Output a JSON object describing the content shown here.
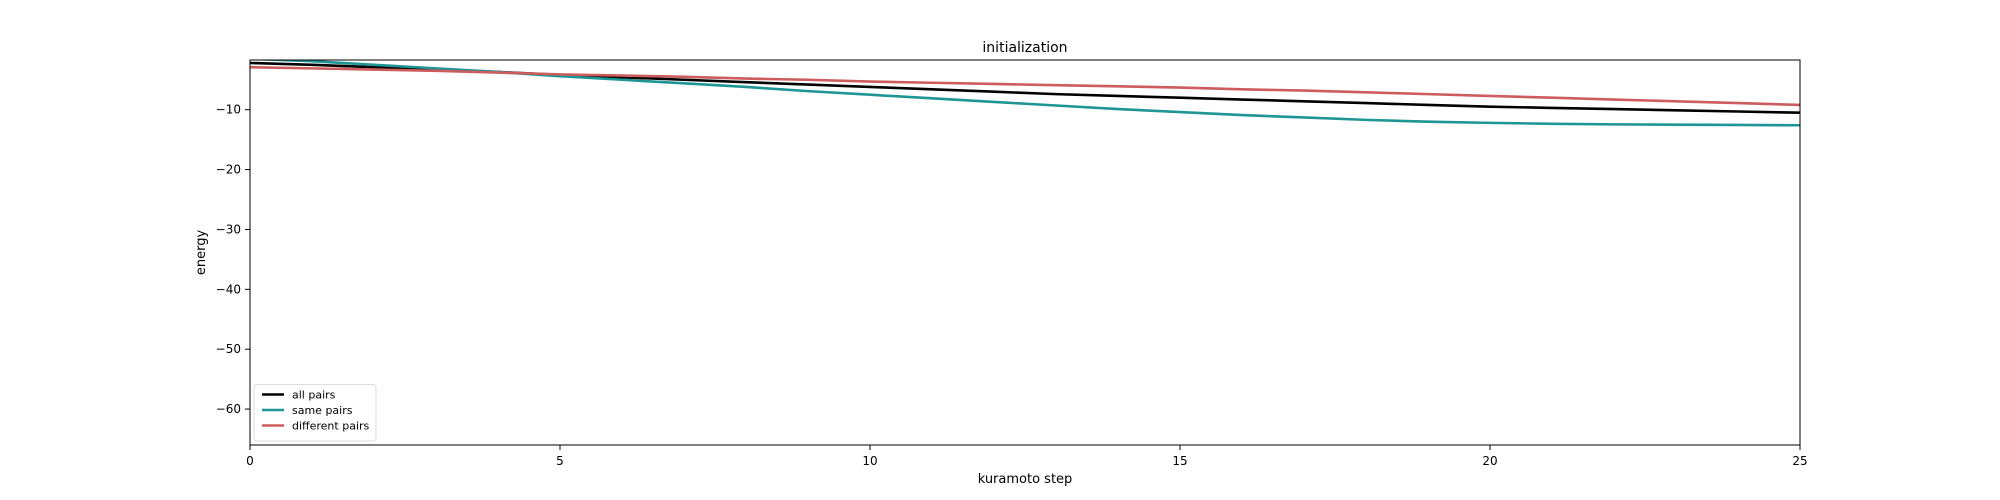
{
  "colors": {
    "all": "#000000",
    "same": "#1f9595",
    "different": "#cd5c5c"
  },
  "chart_data": {
    "type": "line",
    "title": "initialization",
    "xlabel": "kuramoto step",
    "ylabel": "energy",
    "xlim": [
      0,
      25
    ],
    "ylim": [
      -66,
      -1.7
    ],
    "xticks": [
      0,
      5,
      10,
      15,
      20,
      25
    ],
    "yticks": [
      -10,
      -20,
      -30,
      -40,
      -50,
      -60
    ],
    "ytick_labels": [
      "−10",
      "−20",
      "−30",
      "−40",
      "−50",
      "−60"
    ],
    "grid": false,
    "legend": {
      "placement": "lower-left"
    },
    "x": [
      0,
      1,
      2,
      3,
      4,
      5,
      6,
      7,
      8,
      9,
      10,
      11,
      12,
      13,
      14,
      15,
      16,
      17,
      18,
      19,
      20,
      21,
      22,
      23,
      24,
      25
    ],
    "series": [
      {
        "name": "all pairs",
        "color": "#000000",
        "values": [
          -2.2,
          -2.5,
          -2.9,
          -3.3,
          -3.7,
          -4.2,
          -4.6,
          -5.0,
          -5.4,
          -5.8,
          -6.2,
          -6.6,
          -7.0,
          -7.4,
          -7.7,
          -8.0,
          -8.3,
          -8.6,
          -8.9,
          -9.2,
          -9.5,
          -9.7,
          -9.9,
          -10.1,
          -10.3,
          -10.5
        ]
      },
      {
        "name": "same pairs",
        "color": "#1f9595",
        "values": [
          -1.5,
          -1.9,
          -2.5,
          -3.1,
          -3.7,
          -4.4,
          -5.0,
          -5.6,
          -6.2,
          -6.9,
          -7.5,
          -8.1,
          -8.7,
          -9.3,
          -9.9,
          -10.4,
          -10.9,
          -11.3,
          -11.7,
          -12.0,
          -12.2,
          -12.35,
          -12.45,
          -12.5,
          -12.55,
          -12.6
        ]
      },
      {
        "name": "different pairs",
        "color": "#cd5c5c",
        "values": [
          -2.9,
          -3.1,
          -3.3,
          -3.5,
          -3.8,
          -4.1,
          -4.3,
          -4.5,
          -4.8,
          -5.0,
          -5.3,
          -5.5,
          -5.7,
          -5.9,
          -6.1,
          -6.3,
          -6.6,
          -6.8,
          -7.1,
          -7.4,
          -7.7,
          -8.0,
          -8.3,
          -8.6,
          -8.9,
          -9.2
        ]
      }
    ]
  }
}
